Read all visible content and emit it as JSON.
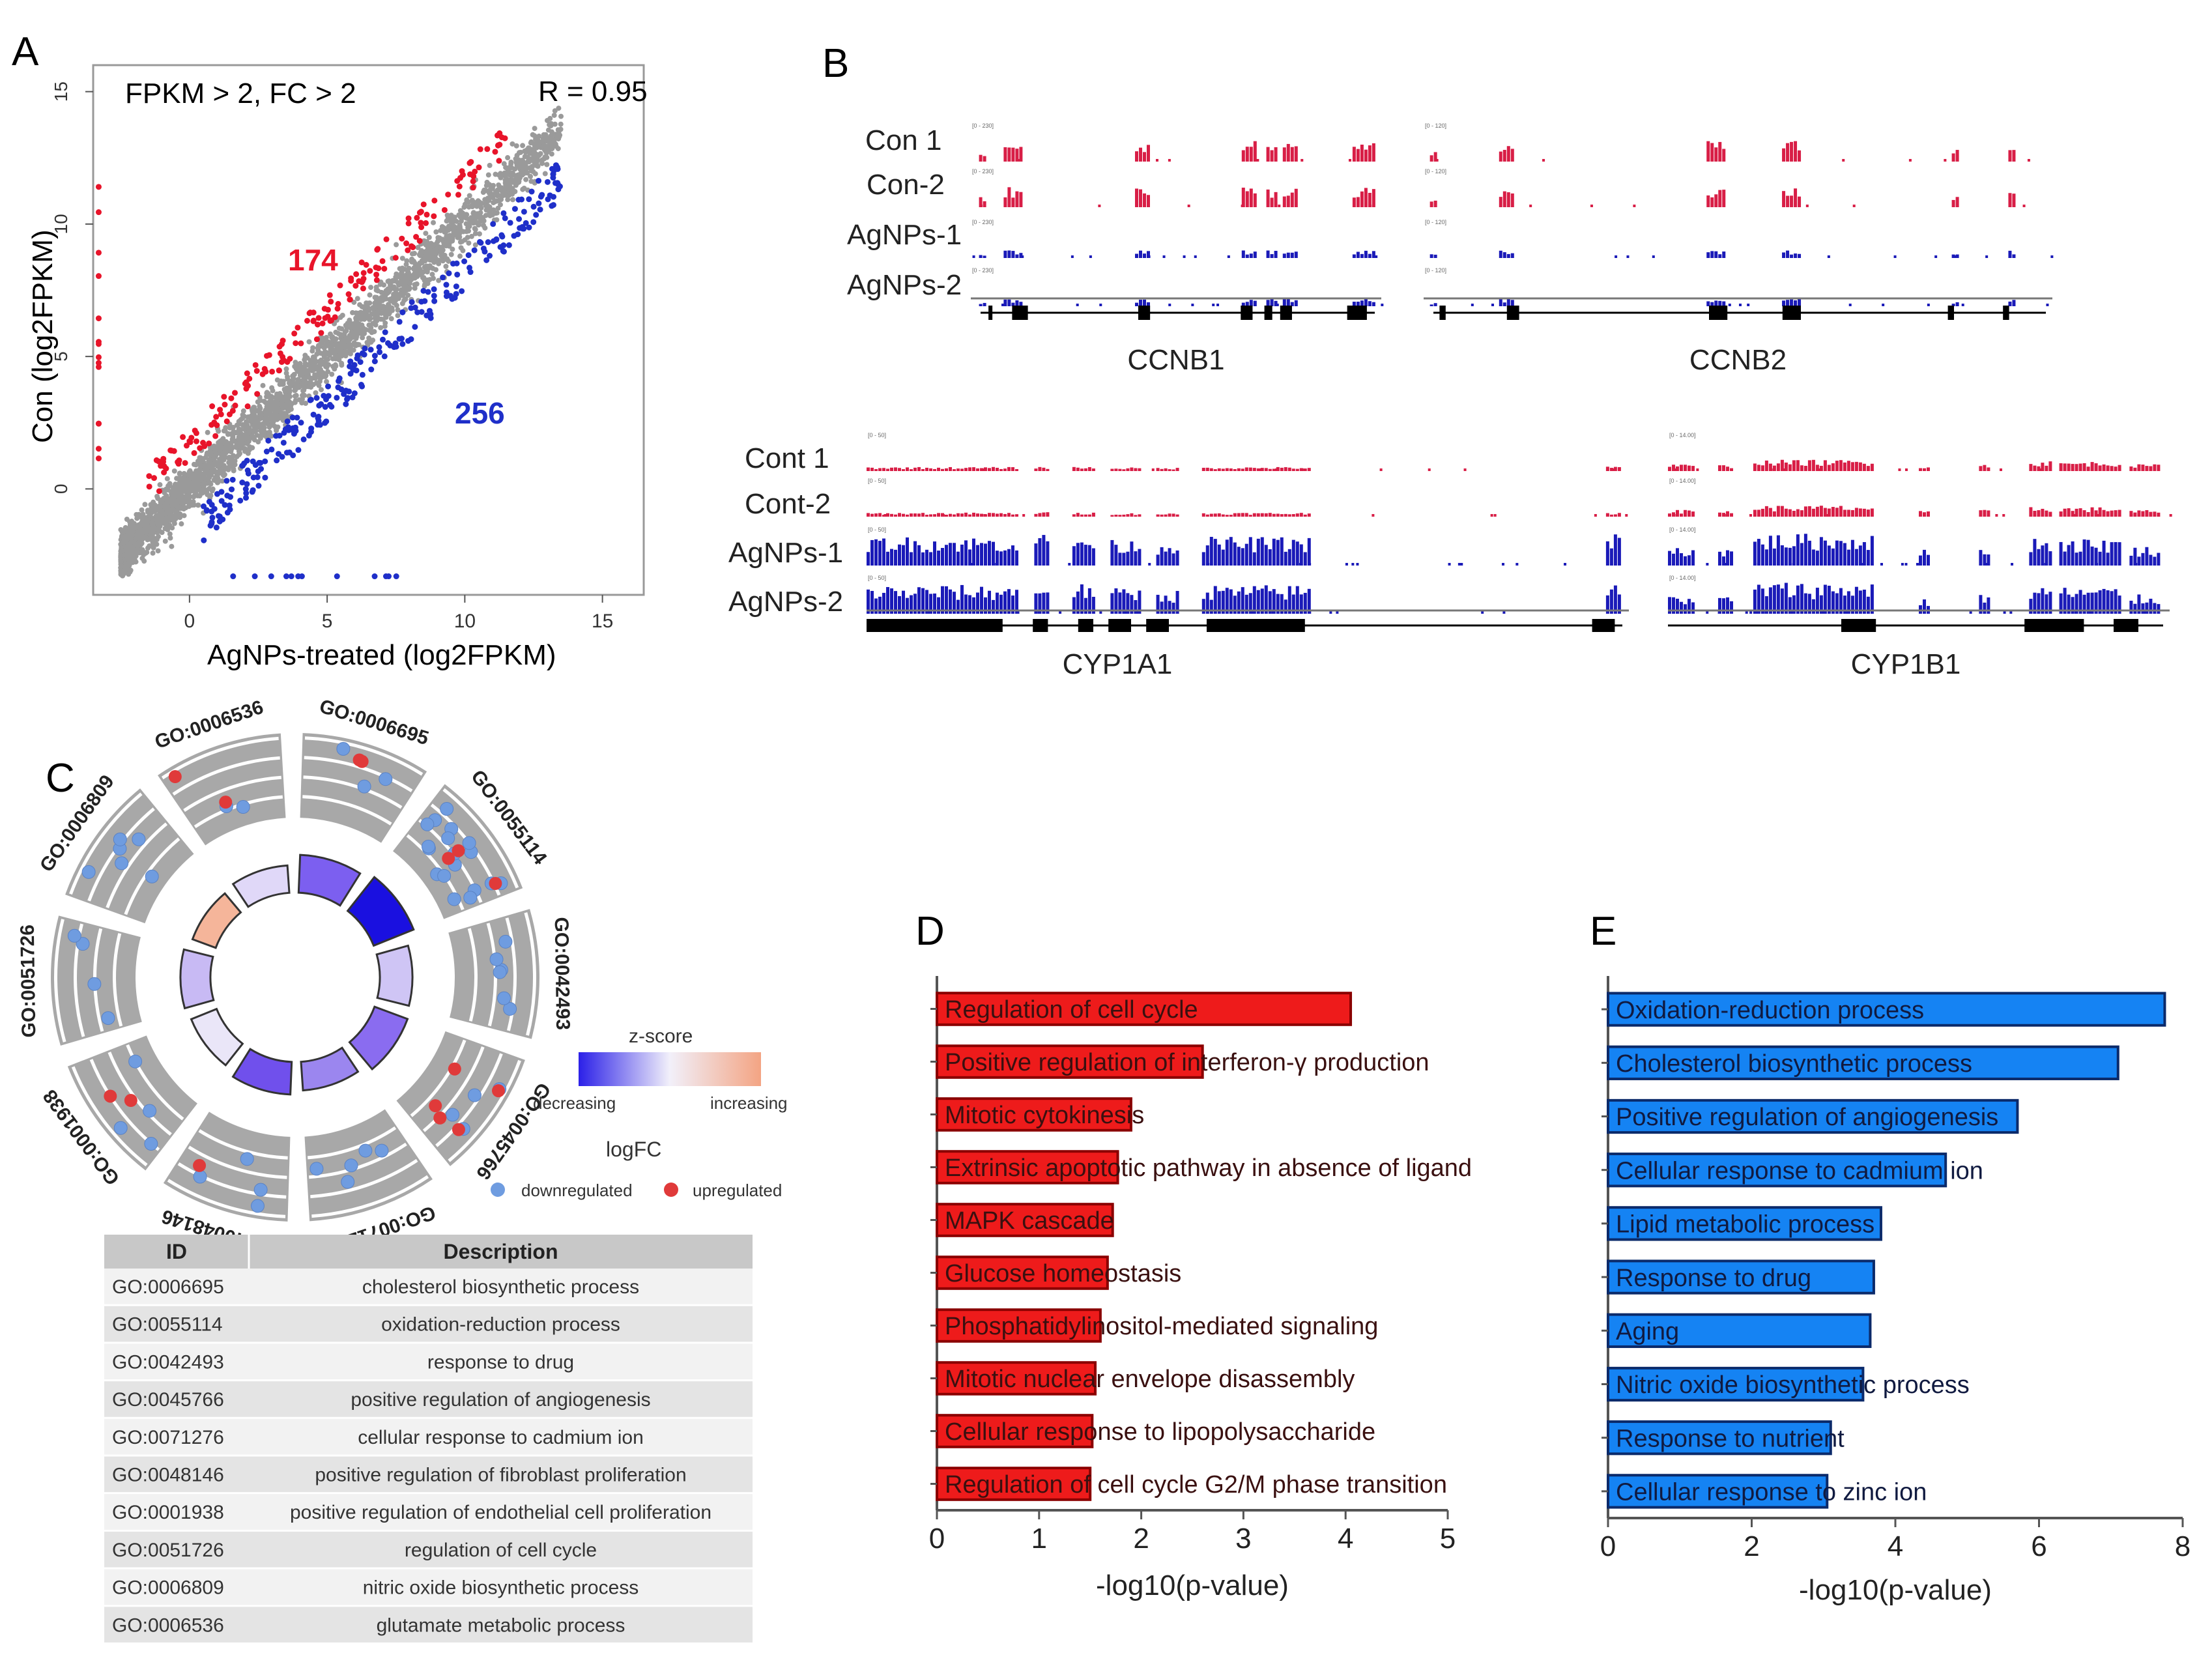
{
  "panel_letters": {
    "A": "A",
    "B": "B",
    "C": "C",
    "D": "D",
    "E": "E"
  },
  "colors": {
    "up": "#e8142a",
    "down": "#1f2fc9",
    "neutral": "#9a9a9a",
    "go_up": "#e03a3a",
    "go_down": "#6f9ce0",
    "barD": "#ee1b1b",
    "barE": "#1583f3",
    "track_red": "#d81e46",
    "track_blue": "#1a1ab8"
  },
  "chart_data": [
    {
      "id": "A",
      "type": "scatter",
      "title": "FPKM > 2, FC > 2",
      "annotation": "R = 0.95",
      "xlabel": "AgNPs-treated  (log2FPKM)",
      "ylabel": "Con  (log2FPKM)",
      "xlim": [
        -3.5,
        16.5
      ],
      "ylim": [
        -4,
        16
      ],
      "xticks": [
        "0",
        "5",
        "10",
        "15"
      ],
      "yticks": [
        "0",
        "5",
        "10",
        "15"
      ],
      "up_count": "174",
      "down_count": "256",
      "series": [
        {
          "name": "upregulated in Con",
          "color": "#e8142a"
        },
        {
          "name": "downregulated in Con",
          "color": "#1f2fc9"
        },
        {
          "name": "unchanged",
          "color": "#9a9a9a"
        }
      ]
    },
    {
      "id": "B",
      "type": "genome-tracks",
      "groups": [
        {
          "samples": [
            "Con 1",
            "Con-2",
            "AgNPs-1",
            "AgNPs-2"
          ],
          "genes": [
            "CCNB1",
            "CCNB2"
          ],
          "ranges": [
            "[0 - 230]",
            "[0 - 120]"
          ]
        },
        {
          "samples": [
            "Cont 1",
            "Cont-2",
            "AgNPs-1",
            "AgNPs-2"
          ],
          "genes": [
            "CYP1A1",
            "CYP1B1"
          ],
          "ranges": [
            "[0 - 50]",
            "[0 - 14.00]"
          ]
        }
      ]
    },
    {
      "id": "C",
      "type": "circular-go",
      "go_terms": [
        "GO:0006695",
        "GO:0055114",
        "GO:0042493",
        "GO:0045766",
        "GO:0071276",
        "GO:0048146",
        "GO:0001938",
        "GO:0051726",
        "GO:0006809",
        "GO:0006536"
      ],
      "zscore_legend": {
        "title": "z-score",
        "low": "decreasing",
        "high": "increasing"
      },
      "logfc_legend": {
        "title": "logFC",
        "down": "downregulated",
        "up": "upregulated"
      },
      "table": {
        "headers": [
          "ID",
          "Description"
        ],
        "rows": [
          [
            "GO:0006695",
            "cholesterol biosynthetic process"
          ],
          [
            "GO:0055114",
            "oxidation-reduction process"
          ],
          [
            "GO:0042493",
            "response to drug"
          ],
          [
            "GO:0045766",
            "positive regulation of angiogenesis"
          ],
          [
            "GO:0071276",
            "cellular response to cadmium ion"
          ],
          [
            "GO:0048146",
            "positive regulation of fibroblast proliferation"
          ],
          [
            "GO:0001938",
            "positive regulation of endothelial cell proliferation"
          ],
          [
            "GO:0051726",
            "regulation of cell cycle"
          ],
          [
            "GO:0006809",
            "nitric oxide biosynthetic process"
          ],
          [
            "GO:0006536",
            "glutamate metabolic process"
          ]
        ]
      }
    },
    {
      "id": "D",
      "type": "bar",
      "orientation": "horizontal",
      "xlabel": "-log10(p-value)",
      "xlim": [
        0,
        5
      ],
      "xticks": [
        "0",
        "1",
        "2",
        "3",
        "4",
        "5"
      ],
      "categories": [
        "Regulation of cell cycle",
        "Positive regulation of interferon-γ production",
        "Mitotic cytokinesis",
        "Extrinsic apoptotic pathway in absence of ligand",
        "MAPK cascade",
        "Glucose homeostasis",
        "Phosphatidylinositol-mediated signaling",
        "Mitotic nuclear envelope disassembly",
        "Cellular response to lipopolysaccharide",
        "Regulation of cell cycle  G2/M  phase transition"
      ],
      "values": [
        4.05,
        2.6,
        1.9,
        1.77,
        1.72,
        1.67,
        1.6,
        1.55,
        1.52,
        1.5
      ]
    },
    {
      "id": "E",
      "type": "bar",
      "orientation": "horizontal",
      "xlabel": "-log10(p-value)",
      "xlim": [
        0,
        8
      ],
      "xticks": [
        "0",
        "2",
        "4",
        "6",
        "8"
      ],
      "categories": [
        "Oxidation-reduction process",
        "Cholesterol biosynthetic process",
        "Positive regulation of angiogenesis",
        "Cellular response to cadmium ion",
        "Lipid metabolic process",
        "Response to drug",
        "Aging",
        "Nitric oxide biosynthetic process",
        "Response to nutrient",
        "Cellular response to zinc ion"
      ],
      "values": [
        7.75,
        7.1,
        5.7,
        4.7,
        3.8,
        3.7,
        3.65,
        3.55,
        3.1,
        3.05
      ]
    }
  ]
}
